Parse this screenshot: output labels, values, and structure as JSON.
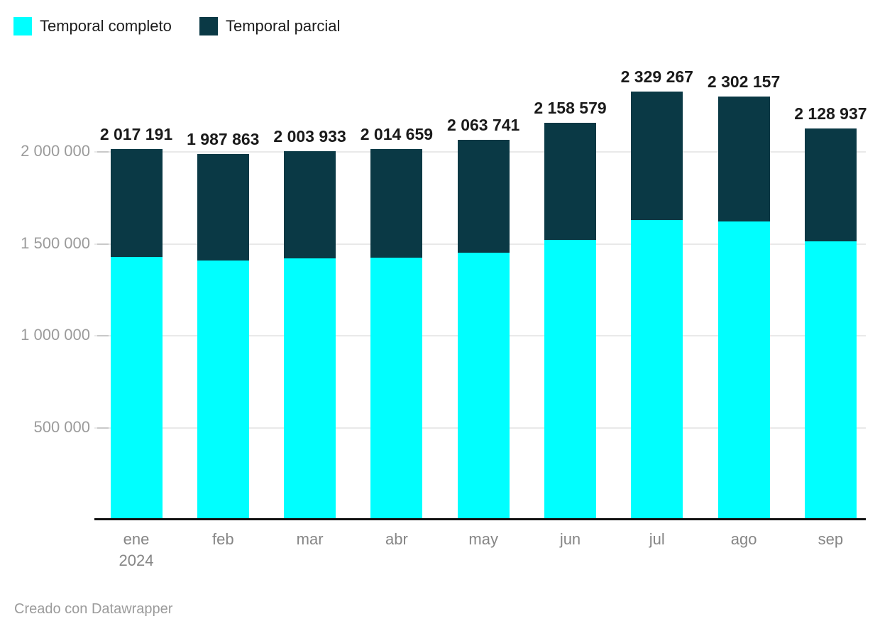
{
  "legend": {
    "items": [
      {
        "label": "Temporal completo",
        "color": "#00ffff"
      },
      {
        "label": "Temporal parcial",
        "color": "#0a3945"
      }
    ]
  },
  "chart_data": {
    "type": "bar",
    "subtype": "stacked-column",
    "title": "",
    "xlabel": "",
    "ylabel": "",
    "legend_position": "top-left",
    "grid": true,
    "values_estimated_from_gridlines": true,
    "categories": [
      {
        "label": "ene",
        "sublabel": "2024"
      },
      {
        "label": "feb"
      },
      {
        "label": "mar"
      },
      {
        "label": "abr"
      },
      {
        "label": "may"
      },
      {
        "label": "jun"
      },
      {
        "label": "jul"
      },
      {
        "label": "ago"
      },
      {
        "label": "sep"
      }
    ],
    "series": [
      {
        "name": "Temporal completo",
        "color": "#00ffff",
        "values": [
          1428000,
          1409000,
          1419000,
          1424000,
          1451000,
          1521000,
          1631000,
          1621000,
          1513000
        ]
      },
      {
        "name": "Temporal parcial",
        "color": "#0a3945",
        "values": [
          589191,
          578863,
          584933,
          590659,
          612741,
          637579,
          698267,
          681157,
          615937
        ]
      }
    ],
    "totals": {
      "values": [
        2017191,
        1987863,
        2003933,
        2014659,
        2063741,
        2158579,
        2329267,
        2302157,
        2128937
      ],
      "labels": [
        "2 017 191",
        "1 987 863",
        "2 003 933",
        "2 014 659",
        "2 063 741",
        "2 158 579",
        "2 329 267",
        "2 302 157",
        "2 128 937"
      ]
    },
    "y_axis": {
      "ticks": [
        500000,
        1000000,
        1500000,
        2000000
      ],
      "tick_labels": [
        "500 000",
        "1 000 000",
        "1 500 000",
        "2 000 000"
      ],
      "range": [
        0,
        2450000
      ]
    }
  },
  "footer": {
    "credit": "Creado con Datawrapper"
  }
}
